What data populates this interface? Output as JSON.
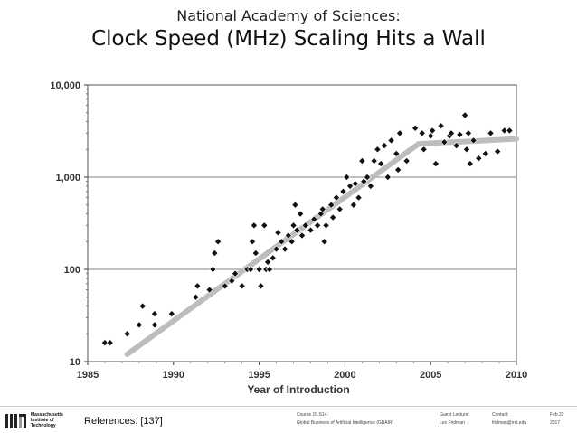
{
  "slide": {
    "pre_title": "National Academy of Sciences:",
    "title": "Clock Speed (MHz) Scaling Hits a Wall"
  },
  "chart_data": {
    "type": "scatter",
    "title": "",
    "xlabel": "Year of Introduction",
    "ylabel": "",
    "xlim": [
      1985,
      2010
    ],
    "ylim": [
      10,
      10000
    ],
    "y_scale": "log",
    "grid": true,
    "x_ticks": [
      "1985",
      "1990",
      "1995",
      "2000",
      "2005",
      "2010"
    ],
    "y_ticks": [
      "10",
      "100",
      "1,000",
      "10,000"
    ],
    "series": [
      {
        "kind": "points",
        "points": [
          [
            1986.0,
            16
          ],
          [
            1986.3,
            16
          ],
          [
            1987.3,
            20
          ],
          [
            1988.0,
            25
          ],
          [
            1988.2,
            40
          ],
          [
            1988.9,
            25
          ],
          [
            1988.9,
            33
          ],
          [
            1989.9,
            33
          ],
          [
            1991.3,
            50
          ],
          [
            1991.4,
            66
          ],
          [
            1992.1,
            60
          ],
          [
            1992.3,
            100
          ],
          [
            1992.4,
            150
          ],
          [
            1992.6,
            200
          ],
          [
            1993.0,
            66
          ],
          [
            1993.4,
            75
          ],
          [
            1993.6,
            90
          ],
          [
            1994.0,
            66
          ],
          [
            1994.3,
            100
          ],
          [
            1994.5,
            100
          ],
          [
            1994.6,
            200
          ],
          [
            1994.7,
            300
          ],
          [
            1994.8,
            150
          ],
          [
            1995.0,
            100
          ],
          [
            1995.1,
            66
          ],
          [
            1995.3,
            300
          ],
          [
            1995.4,
            100
          ],
          [
            1995.5,
            120
          ],
          [
            1995.6,
            100
          ],
          [
            1995.8,
            133
          ],
          [
            1996.0,
            166
          ],
          [
            1996.1,
            250
          ],
          [
            1996.3,
            200
          ],
          [
            1996.5,
            166
          ],
          [
            1996.7,
            233
          ],
          [
            1996.9,
            200
          ],
          [
            1997.0,
            300
          ],
          [
            1997.1,
            500
          ],
          [
            1997.2,
            266
          ],
          [
            1997.4,
            400
          ],
          [
            1997.5,
            233
          ],
          [
            1997.7,
            300
          ],
          [
            1998.0,
            266
          ],
          [
            1998.2,
            350
          ],
          [
            1998.4,
            300
          ],
          [
            1998.6,
            400
          ],
          [
            1998.7,
            450
          ],
          [
            1998.8,
            200
          ],
          [
            1998.9,
            300
          ],
          [
            1999.2,
            500
          ],
          [
            1999.3,
            366
          ],
          [
            1999.5,
            600
          ],
          [
            1999.7,
            450
          ],
          [
            1999.9,
            700
          ],
          [
            2000.1,
            1000
          ],
          [
            2000.3,
            800
          ],
          [
            2000.5,
            500
          ],
          [
            2000.6,
            850
          ],
          [
            2000.8,
            600
          ],
          [
            2001.0,
            1500
          ],
          [
            2001.1,
            900
          ],
          [
            2001.3,
            1000
          ],
          [
            2001.5,
            800
          ],
          [
            2001.7,
            1500
          ],
          [
            2001.9,
            2000
          ],
          [
            2002.1,
            1400
          ],
          [
            2002.3,
            2200
          ],
          [
            2002.5,
            1000
          ],
          [
            2002.7,
            2500
          ],
          [
            2003.0,
            1800
          ],
          [
            2003.2,
            3000
          ],
          [
            2003.1,
            1200
          ],
          [
            2003.6,
            1500
          ],
          [
            2004.1,
            3400
          ],
          [
            2004.5,
            3000
          ],
          [
            2004.6,
            2000
          ],
          [
            2005.0,
            2800
          ],
          [
            2005.1,
            3200
          ],
          [
            2005.3,
            1400
          ],
          [
            2005.6,
            3600
          ],
          [
            2005.8,
            2400
          ],
          [
            2006.1,
            2800
          ],
          [
            2006.2,
            3000
          ],
          [
            2006.5,
            2200
          ],
          [
            2006.7,
            2900
          ],
          [
            2007.0,
            4700
          ],
          [
            2007.1,
            2000
          ],
          [
            2007.2,
            3000
          ],
          [
            2007.3,
            1400
          ],
          [
            2007.5,
            2500
          ],
          [
            2007.8,
            1600
          ],
          [
            2008.2,
            1800
          ],
          [
            2008.5,
            3000
          ],
          [
            2008.9,
            1900
          ],
          [
            2009.3,
            3200
          ],
          [
            2009.6,
            3200
          ]
        ]
      },
      {
        "kind": "trend",
        "points": [
          [
            1987.3,
            12
          ],
          [
            2004.3,
            2300
          ],
          [
            2010,
            2600
          ]
        ]
      }
    ]
  },
  "footer": {
    "logo_lines": [
      "Massachusetts",
      "Institute of",
      "Technology"
    ],
    "references": "References: [137]",
    "course_label": "Course 15.S14:",
    "course_name": "Global Business of Artificial Intelligence (GBAIR)",
    "guest_label": "Guest Lecture:",
    "guest_name": "Lex Fridman",
    "contact_label": "Contact:",
    "contact_email": "fridman@mit.edu",
    "date_month": "Feb 22",
    "date_year": "2017"
  }
}
